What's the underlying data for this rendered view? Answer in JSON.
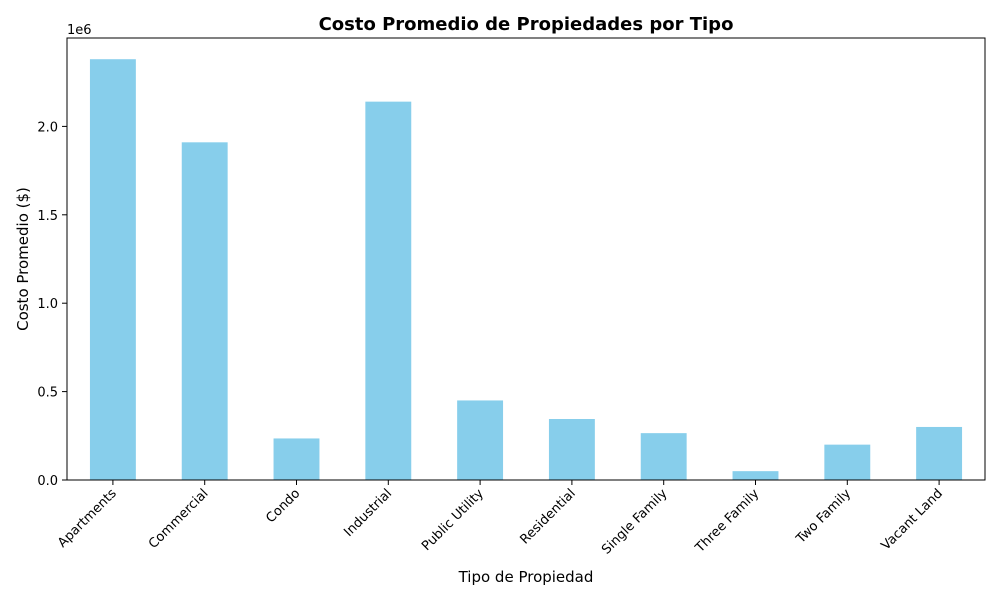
{
  "chart_data": {
    "type": "bar",
    "title": "Costo Promedio de Propiedades por Tipo",
    "xlabel": "Tipo de Propiedad",
    "ylabel": "Costo Promedio ($)",
    "y_offset_label": "1e6",
    "categories": [
      "Apartments",
      "Commercial",
      "Condo",
      "Industrial",
      "Public Utility",
      "Residential",
      "Single Family",
      "Three Family",
      "Two Family",
      "Vacant Land"
    ],
    "values": [
      2380000,
      1910000,
      235000,
      2140000,
      450000,
      345000,
      265000,
      50000,
      200000,
      300000
    ],
    "ylim": [
      0,
      2500000
    ],
    "yticks": [
      0,
      500000,
      1000000,
      1500000,
      2000000
    ],
    "ytick_labels": [
      "0.0",
      "0.5",
      "1.0",
      "1.5",
      "2.0"
    ],
    "bar_color": "#87ceeb",
    "grid": false,
    "legend": "none"
  }
}
